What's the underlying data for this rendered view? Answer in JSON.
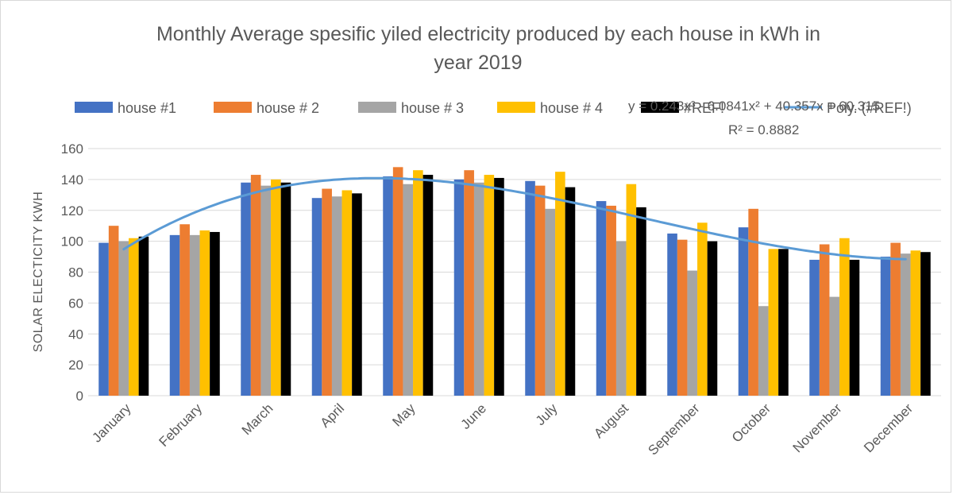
{
  "chart_data": {
    "type": "bar",
    "title_lines": [
      "Monthly Average spesific yiled electricity produced by each house in kWh in",
      "year 2019"
    ],
    "xlabel": "",
    "ylabel": "SOLAR ELECTICITY  KWH",
    "ylim": [
      0,
      160
    ],
    "yticks": [
      0,
      20,
      40,
      60,
      80,
      100,
      120,
      140,
      160
    ],
    "grid": true,
    "legend_position": "top",
    "categories": [
      "January",
      "February",
      "March",
      "April",
      "May",
      "June",
      "July",
      "August",
      "September",
      "October",
      "November",
      "December"
    ],
    "series": [
      {
        "name": "house #1",
        "color": "#4472c4",
        "values": [
          99,
          104,
          138,
          128,
          142,
          140,
          139,
          126,
          105,
          109,
          88,
          90
        ]
      },
      {
        "name": "house # 2",
        "color": "#ed7d31",
        "values": [
          110,
          111,
          143,
          134,
          148,
          146,
          136,
          123,
          101,
          121,
          98,
          99
        ]
      },
      {
        "name": "house # 3",
        "color": "#a5a5a5",
        "values": [
          100,
          104,
          136,
          129,
          137,
          138,
          121,
          100,
          81,
          58,
          64,
          92
        ]
      },
      {
        "name": "house # 4",
        "color": "#ffc000",
        "values": [
          102,
          107,
          140,
          133,
          146,
          143,
          145,
          137,
          112,
          95,
          102,
          94
        ]
      },
      {
        "name": "#REF!",
        "color": "#000000",
        "values": [
          103,
          106,
          138,
          131,
          143,
          141,
          135,
          122,
          100,
          95,
          88,
          93
        ]
      }
    ],
    "trendline": {
      "name": "Poly. (#REF!)",
      "color": "#5b9bd5",
      "equation": "y = 0.243x³ - 6.0841x² + 40.357x + 60.315",
      "r_squared": "R² = 0.8882",
      "coefficients": {
        "a3": 0.243,
        "a2": -6.0841,
        "a1": 40.357,
        "a0": 60.315
      }
    }
  }
}
